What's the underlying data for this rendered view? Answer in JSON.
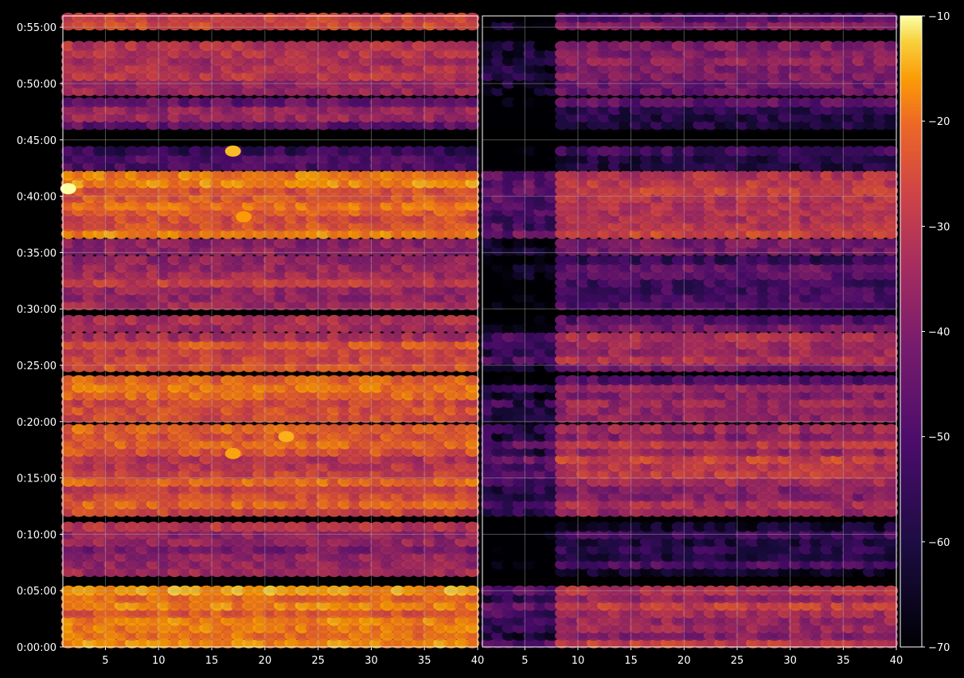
{
  "chart_data": {
    "type": "heatmap",
    "title": "",
    "xlabel": "",
    "ylabel": "",
    "colormap": "inferno",
    "background_color": "#000000",
    "grid": true,
    "panels": [
      {
        "name": "",
        "xlim": [
          1,
          40
        ],
        "xticks": [
          5,
          10,
          15,
          20,
          25,
          30,
          35,
          40
        ],
        "xtick_labels": [
          "5",
          "10",
          "15",
          "20",
          "25",
          "30",
          "35",
          "40"
        ]
      },
      {
        "name": "",
        "xlim": [
          1,
          40
        ],
        "xticks": [
          5,
          10,
          15,
          20,
          25,
          30,
          35,
          40
        ],
        "xtick_labels": [
          "5",
          "10",
          "15",
          "20",
          "25",
          "30",
          "35",
          "40"
        ]
      }
    ],
    "y_axis": {
      "ylim_seconds": [
        0,
        3360
      ],
      "yticks_seconds": [
        0,
        300,
        600,
        900,
        1200,
        1500,
        1800,
        2100,
        2400,
        2700,
        3000,
        3300
      ],
      "ytick_labels": [
        "0:00:00",
        "0:05:00",
        "0:10:00",
        "0:15:00",
        "0:20:00",
        "0:25:00",
        "0:30:00",
        "0:35:00",
        "0:40:00",
        "0:45:00",
        "0:50:00",
        "0:55:00"
      ]
    },
    "colorbar": {
      "range": [
        -70,
        -10
      ],
      "ticks": [
        -70,
        -60,
        -50,
        -40,
        -30,
        -20,
        -10
      ],
      "tick_labels": [
        "−70",
        "−60",
        "−50",
        "−40",
        "−30",
        "−20",
        "−10"
      ]
    },
    "bands": [
      {
        "t_start": 0,
        "t_end": 320,
        "left_level": -22,
        "right_level": -40
      },
      {
        "t_start": 380,
        "t_end": 640,
        "left_level": -42,
        "right_level": -58
      },
      {
        "t_start": 700,
        "t_end": 1160,
        "left_level": -30,
        "right_level": -38
      },
      {
        "t_start": 1200,
        "t_end": 1420,
        "left_level": -28,
        "right_level": -46
      },
      {
        "t_start": 1470,
        "t_end": 1640,
        "left_level": -34,
        "right_level": -42
      },
      {
        "t_start": 1680,
        "t_end": 1750,
        "left_level": -40,
        "right_level": -48
      },
      {
        "t_start": 1800,
        "t_end": 2080,
        "left_level": -40,
        "right_level": -52
      },
      {
        "t_start": 2090,
        "t_end": 2150,
        "left_level": -40,
        "right_level": -45
      },
      {
        "t_start": 2180,
        "t_end": 2310,
        "left_level": -26,
        "right_level": -35
      },
      {
        "t_start": 2330,
        "t_end": 2510,
        "left_level": -27,
        "right_level": -37
      },
      {
        "t_start": 2540,
        "t_end": 2640,
        "left_level": -52,
        "right_level": -60
      },
      {
        "t_start": 2760,
        "t_end": 2900,
        "left_level": -48,
        "right_level": -55
      },
      {
        "t_start": 2940,
        "t_end": 3190,
        "left_level": -40,
        "right_level": -45
      },
      {
        "t_start": 3290,
        "t_end": 3360,
        "left_level": -30,
        "right_level": -50
      }
    ],
    "bright_spots": [
      {
        "panel": 0,
        "x": 1.5,
        "t_seconds": 2440,
        "value": -10
      },
      {
        "panel": 0,
        "x": 17,
        "t_seconds": 1030,
        "value": -17
      },
      {
        "panel": 0,
        "x": 22,
        "t_seconds": 1120,
        "value": -16
      },
      {
        "panel": 0,
        "x": 18,
        "t_seconds": 2290,
        "value": -18
      },
      {
        "panel": 0,
        "x": 17,
        "t_seconds": 2640,
        "value": -15
      }
    ]
  }
}
